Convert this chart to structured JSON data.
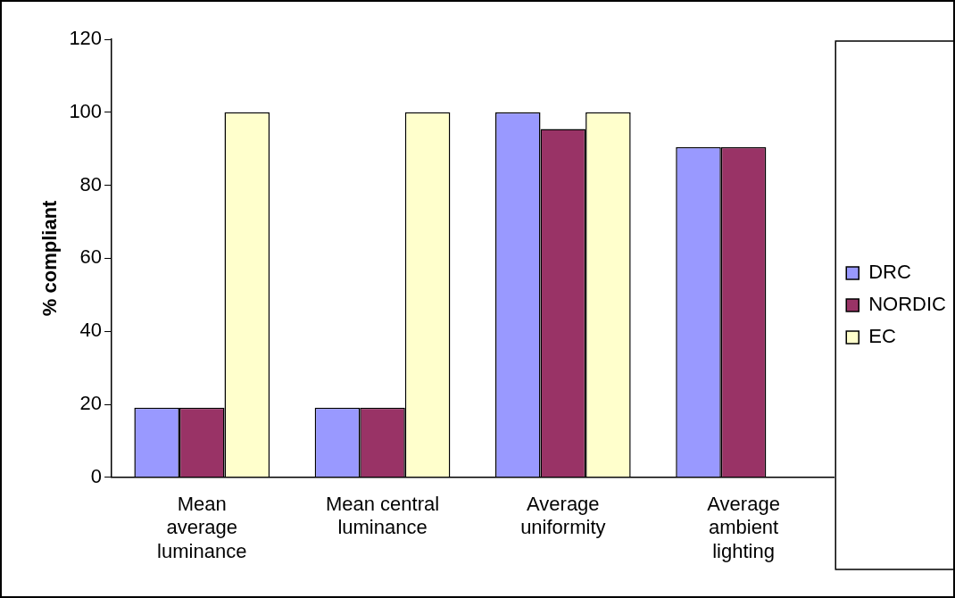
{
  "chart_data": {
    "type": "bar",
    "ylabel": "% compliant",
    "categories": [
      "Mean average luminance",
      "Mean central luminance",
      "Average uniformity",
      "Average ambient lighting"
    ],
    "series": [
      {
        "name": "DRC",
        "color": "#9999ff",
        "values": [
          19.1,
          19.1,
          100,
          90.5
        ]
      },
      {
        "name": "NORDIC",
        "color": "#993366",
        "values": [
          19.1,
          19.1,
          95.4,
          90.5
        ]
      },
      {
        "name": "EC",
        "color": "#ffffcc",
        "values": [
          100,
          100,
          100,
          null
        ]
      }
    ],
    "ylim": [
      0,
      120
    ],
    "yticks": [
      0,
      20,
      40,
      60,
      80,
      100,
      120
    ],
    "grid": false,
    "legend": "right"
  }
}
